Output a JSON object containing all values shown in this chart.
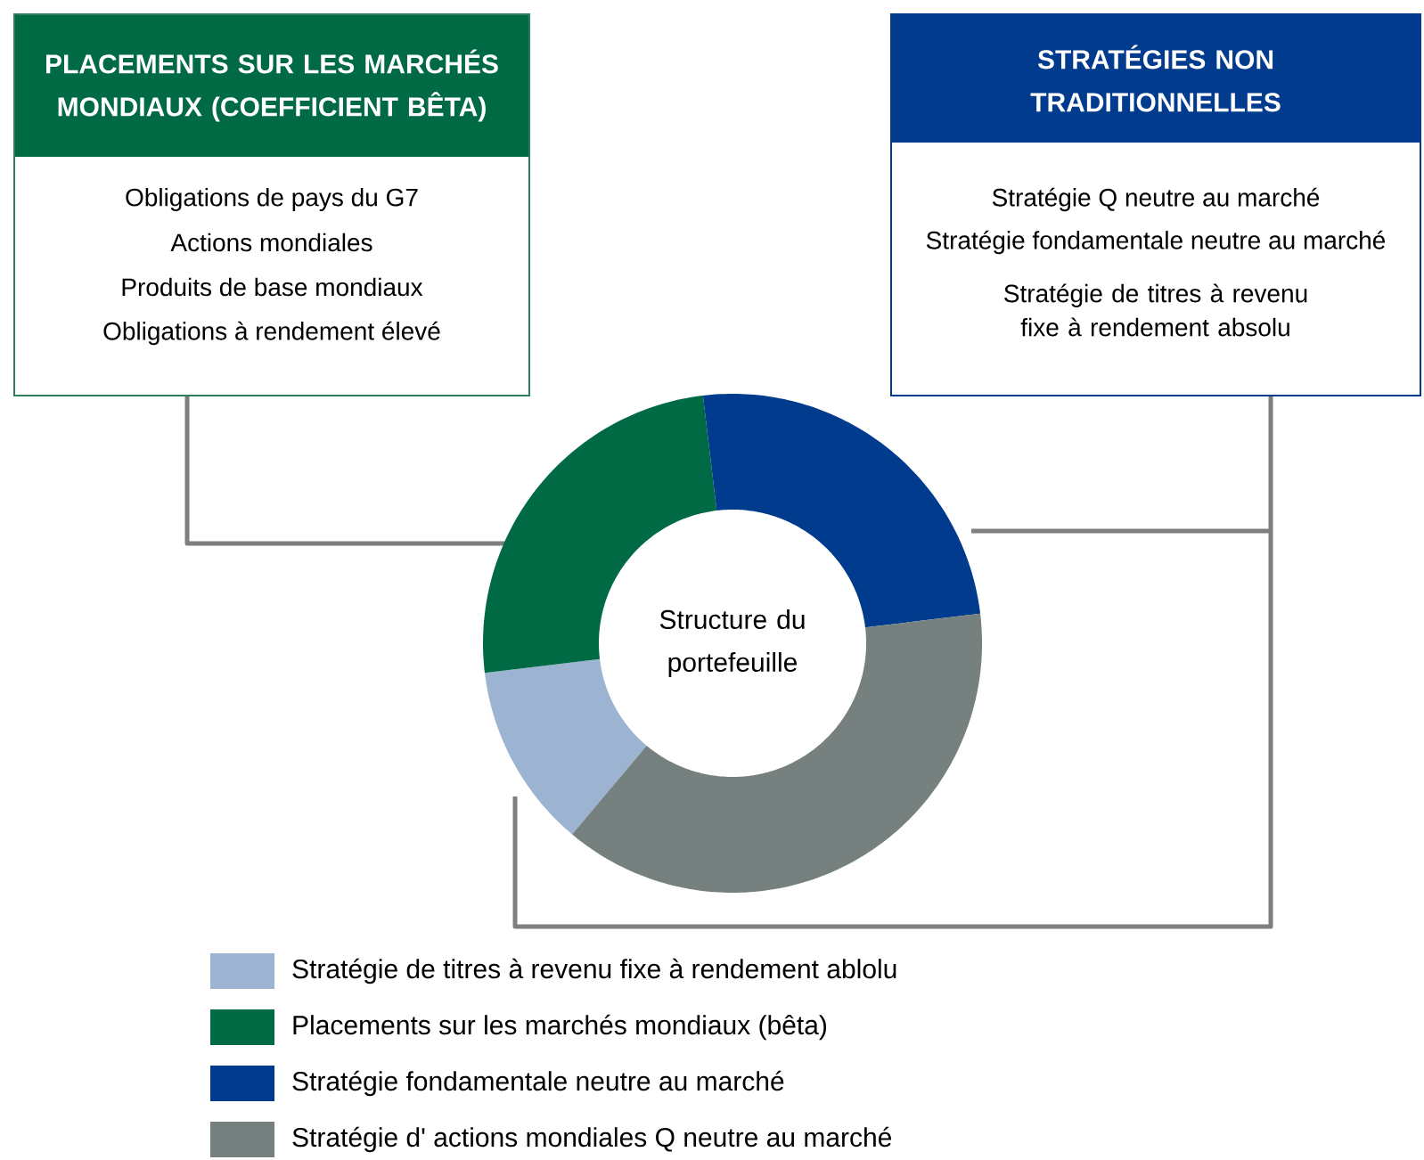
{
  "chart_data": {
    "type": "donut",
    "categories": [
      "Stratégie de titres à revenu fixe à rendement ablolu",
      "Placements sur les marchés mondiaux (bêta)",
      "Stratégie fondamentale neutre au marché",
      "Stratégie d' actions mondiales Q neutre au marché"
    ],
    "values": [
      12,
      25,
      25,
      38
    ],
    "colors": [
      "#9cb3d2",
      "#006a44",
      "#003b8e",
      "#76817f"
    ],
    "legend": "bottom",
    "annotations": [
      "PLACEMENTS SUR LES MARCHÉS MONDIAUX (COEFFICIENT BÊTA)",
      "Obligations de pays du G7",
      "Actions mondiales",
      "Produits de base mondiaux",
      "Obligations à rendement élevé",
      "STRATÉGIES NON TRADITIONNELLES",
      "Stratégie Q neutre au marché",
      "Stratégie fondamentale neutre au marché",
      "Stratégie de titres à revenu fixe à rendement absolu",
      "Structure du portefeuille"
    ]
  }
}
